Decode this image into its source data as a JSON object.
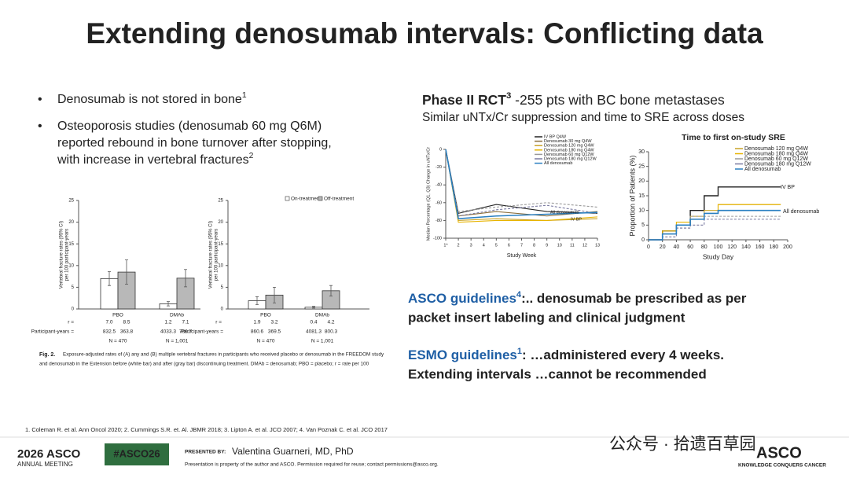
{
  "title": "Extending denosumab intervals: Conflicting data",
  "bullets": [
    {
      "text": "Denosumab is not stored in bone",
      "ref": "1"
    },
    {
      "lines": [
        "Osteoporosis studies (denosumab 60 mg Q6M)",
        "reported rebound in bone turnover after stopping,",
        "with increase in vertebral fractures"
      ],
      "ref": "2"
    }
  ],
  "figure": {
    "caption": [
      "Fig. 2.",
      "Exposure-adjusted rates of (A) any and (B) multiple vertebral fractures in participants who received placebo or denosumab in the FREEDOM study",
      "and denosumab in the Extension before (white bar) and after (gray bar) discontinuing treatment. DMAb = denosumab; PBO = placebo; r = rate per 100"
    ],
    "series_names": [
      "On-treatment",
      "Off-treatment"
    ],
    "colors": [
      "#ffffff",
      "#b8b8b8"
    ],
    "ylabel": [
      "Vertebral fracture rates (95% CI)",
      "per 100 participant-years"
    ],
    "ylim": [
      0,
      25
    ],
    "yticks": [
      0,
      5,
      10,
      15,
      20,
      25
    ],
    "row_labels": [
      "r =",
      "Participant-years ="
    ],
    "panels": [
      {
        "groups": [
          {
            "name": "PBO",
            "values": [
              7.0,
              8.5
            ],
            "value_labels": [
              "7.0",
              "8.5"
            ],
            "errors": [
              1.6,
              2.8
            ],
            "participant_years": [
              "832.5",
              "363.8"
            ],
            "n": "N = 470"
          },
          {
            "name": "DMAb",
            "values": [
              1.2,
              7.1
            ],
            "value_labels": [
              "1.2",
              "7.1"
            ],
            "errors": [
              0.5,
              2.0
            ],
            "participant_years": [
              "4033.3",
              "786.7"
            ],
            "n": "N = 1,001"
          }
        ]
      },
      {
        "groups": [
          {
            "name": "PBO",
            "values": [
              1.9,
              3.2
            ],
            "value_labels": [
              "1.9",
              "3.2"
            ],
            "errors": [
              0.9,
              1.8
            ],
            "participant_years": [
              "860.6",
              "369.5"
            ],
            "n": "N = 470"
          },
          {
            "name": "DMAb",
            "values": [
              0.4,
              4.2
            ],
            "value_labels": [
              "0.4",
              "4.2"
            ],
            "errors": [
              0.2,
              1.2
            ],
            "participant_years": [
              "4081.3",
              "800.3"
            ],
            "n": "N = 1,001"
          }
        ]
      }
    ]
  },
  "rct": {
    "heading": "Phase II RCT",
    "ref": "3",
    "rest": " -255 pts with BC bone metastases",
    "line2": "Similar uNTx/Cr suppression and time to SRE across doses"
  },
  "chart1": {
    "type": "line",
    "ylabel": "Median Percentage (Q1, Q3) Change in uNTx/Cr",
    "xlabel": "Study Week",
    "x": [
      1,
      2,
      5,
      9,
      13
    ],
    "xlim": [
      1,
      13
    ],
    "xticks": [
      {
        "value": 1,
        "label": "1*"
      },
      2,
      3,
      4,
      5,
      6,
      7,
      8,
      9,
      10,
      11,
      12,
      13
    ],
    "ylim": [
      -100,
      0
    ],
    "yticks": [
      0,
      -20,
      -40,
      -60,
      -80,
      -100
    ],
    "series": [
      {
        "name": "IV BP Q4W",
        "color": "#222222",
        "values": [
          0,
          -72,
          -62,
          -70,
          -72
        ]
      },
      {
        "name": "Denosumab 30 mg Q4W",
        "color": "#8a6d3b",
        "values": [
          0,
          -75,
          -70,
          -75,
          -70
        ]
      },
      {
        "name": "Denosumab 120 mg Q4W",
        "color": "#c9a227",
        "values": [
          0,
          -80,
          -78,
          -80,
          -78
        ]
      },
      {
        "name": "Denosumab 180 mg Q4W",
        "color": "#e8b400",
        "values": [
          0,
          -82,
          -80,
          -80,
          -76
        ]
      },
      {
        "name": "Denosumab 60 mg Q12W",
        "color": "#9a9a9a",
        "values": [
          0,
          -70,
          -65,
          -60,
          -65
        ]
      },
      {
        "name": "Denosumab 180 mg Q12W",
        "color": "#7a7aa0",
        "values": [
          0,
          -75,
          -68,
          -63,
          -72
        ]
      },
      {
        "name": "All denosumab",
        "color": "#2a7fc1",
        "values": [
          0,
          -78,
          -75,
          -73,
          -71
        ]
      }
    ],
    "annotations": [
      "All denosumab",
      "IV BP"
    ]
  },
  "chart2": {
    "type": "step",
    "title": "Time to first on-study SRE",
    "ylabel": "Proportion of Patients (%)",
    "xlabel": "Study Day",
    "x": [
      0,
      20,
      40,
      60,
      80,
      100,
      190
    ],
    "xlim": [
      0,
      200
    ],
    "xticks": [
      0,
      20,
      40,
      60,
      80,
      100,
      120,
      140,
      160,
      180,
      200
    ],
    "ylim": [
      0,
      30
    ],
    "yticks": [
      0,
      5,
      10,
      15,
      20,
      25,
      30
    ],
    "reference": {
      "name": "IV BP",
      "color": "#222222",
      "values": [
        0,
        3,
        5,
        10,
        15,
        18,
        18
      ]
    },
    "series": [
      {
        "name": "Denosumab 120 mg Q4W",
        "color": "#c9a227",
        "values": [
          0,
          2,
          5,
          8,
          10,
          12,
          12
        ]
      },
      {
        "name": "Denosumab 180 mg Q4W",
        "color": "#e8b400",
        "values": [
          0,
          3,
          6,
          7,
          9,
          12,
          12
        ]
      },
      {
        "name": "Denosumab 60 mg Q12W",
        "color": "#9a9a9a",
        "values": [
          0,
          2,
          4,
          8,
          8,
          8,
          8
        ]
      },
      {
        "name": "Denosumab 180 mg Q12W",
        "color": "#7a7aa0",
        "values": [
          0,
          1,
          4,
          5,
          7,
          7,
          7
        ]
      },
      {
        "name": "All denosumab",
        "color": "#2a7fc1",
        "values": [
          0,
          2,
          5,
          7,
          9,
          10,
          10
        ]
      }
    ],
    "annotation": "All denosumab"
  },
  "guidelines": [
    {
      "org": "ASCO guidelines",
      "ref": "4",
      "lines": [
        ":.. denosumab be prescribed as per",
        "packet insert labeling and clinical judgment"
      ]
    },
    {
      "org": "ESMO guidelines",
      "ref": "1",
      "lines": [
        ": …administered every 4 weeks.",
        "Extending intervals …cannot be recommended"
      ]
    }
  ],
  "footnote": "1. Coleman R. et al. Ann Oncol 2020; 2. Cummings S.R. et. Al. JBMR 2018; 3. Lipton A. et al. JCO 2007; 4. Van Poznak C. et al. JCO 2017",
  "footer": {
    "meeting": "2026 ASCO",
    "meeting_sub": "ANNUAL MEETING",
    "hashtag": "#ASCO26",
    "presented_by": "PRESENTED BY:",
    "presenter": "Valentina Guarneri, MD, PhD",
    "disclaimer": "Presentation is property of the author and ASCO. Permission required for reuse; contact permissions@asco.org.",
    "logo": "ASCO",
    "logo_sub": "KNOWLEDGE CONQUERS CANCER",
    "watermark": "公众号 · 拾遗百草园"
  }
}
